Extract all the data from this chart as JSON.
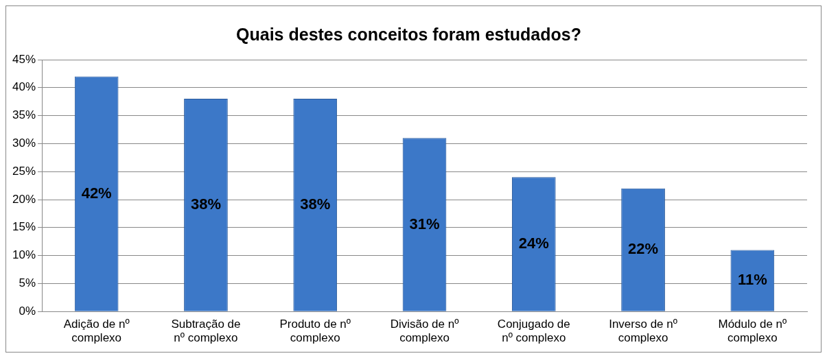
{
  "chart_data": {
    "type": "bar",
    "title": "Quais destes conceitos foram estudados?",
    "categories": [
      "Adição de nº complexo",
      "Subtração de nº complexo",
      "Produto de nº complexo",
      "Divisão de nº complexo",
      "Conjugado de nº complexo",
      "Inverso de nº complexo",
      "Módulo de nº complexo"
    ],
    "values": [
      42,
      38,
      38,
      31,
      24,
      22,
      11
    ],
    "value_labels": [
      "42%",
      "38%",
      "38%",
      "31%",
      "24%",
      "22%",
      "11%"
    ],
    "color": "#3c78c8",
    "ylim": [
      0,
      45
    ],
    "yticks": [
      {
        "value": 0,
        "label": "0%"
      },
      {
        "value": 5,
        "label": "5%"
      },
      {
        "value": 10,
        "label": "10%"
      },
      {
        "value": 15,
        "label": "15%"
      },
      {
        "value": 20,
        "label": "20%"
      },
      {
        "value": 25,
        "label": "25%"
      },
      {
        "value": 30,
        "label": "30%"
      },
      {
        "value": 35,
        "label": "35%"
      },
      {
        "value": 40,
        "label": "40%"
      },
      {
        "value": 45,
        "label": "45%"
      }
    ],
    "grid": "y",
    "legend": false
  }
}
